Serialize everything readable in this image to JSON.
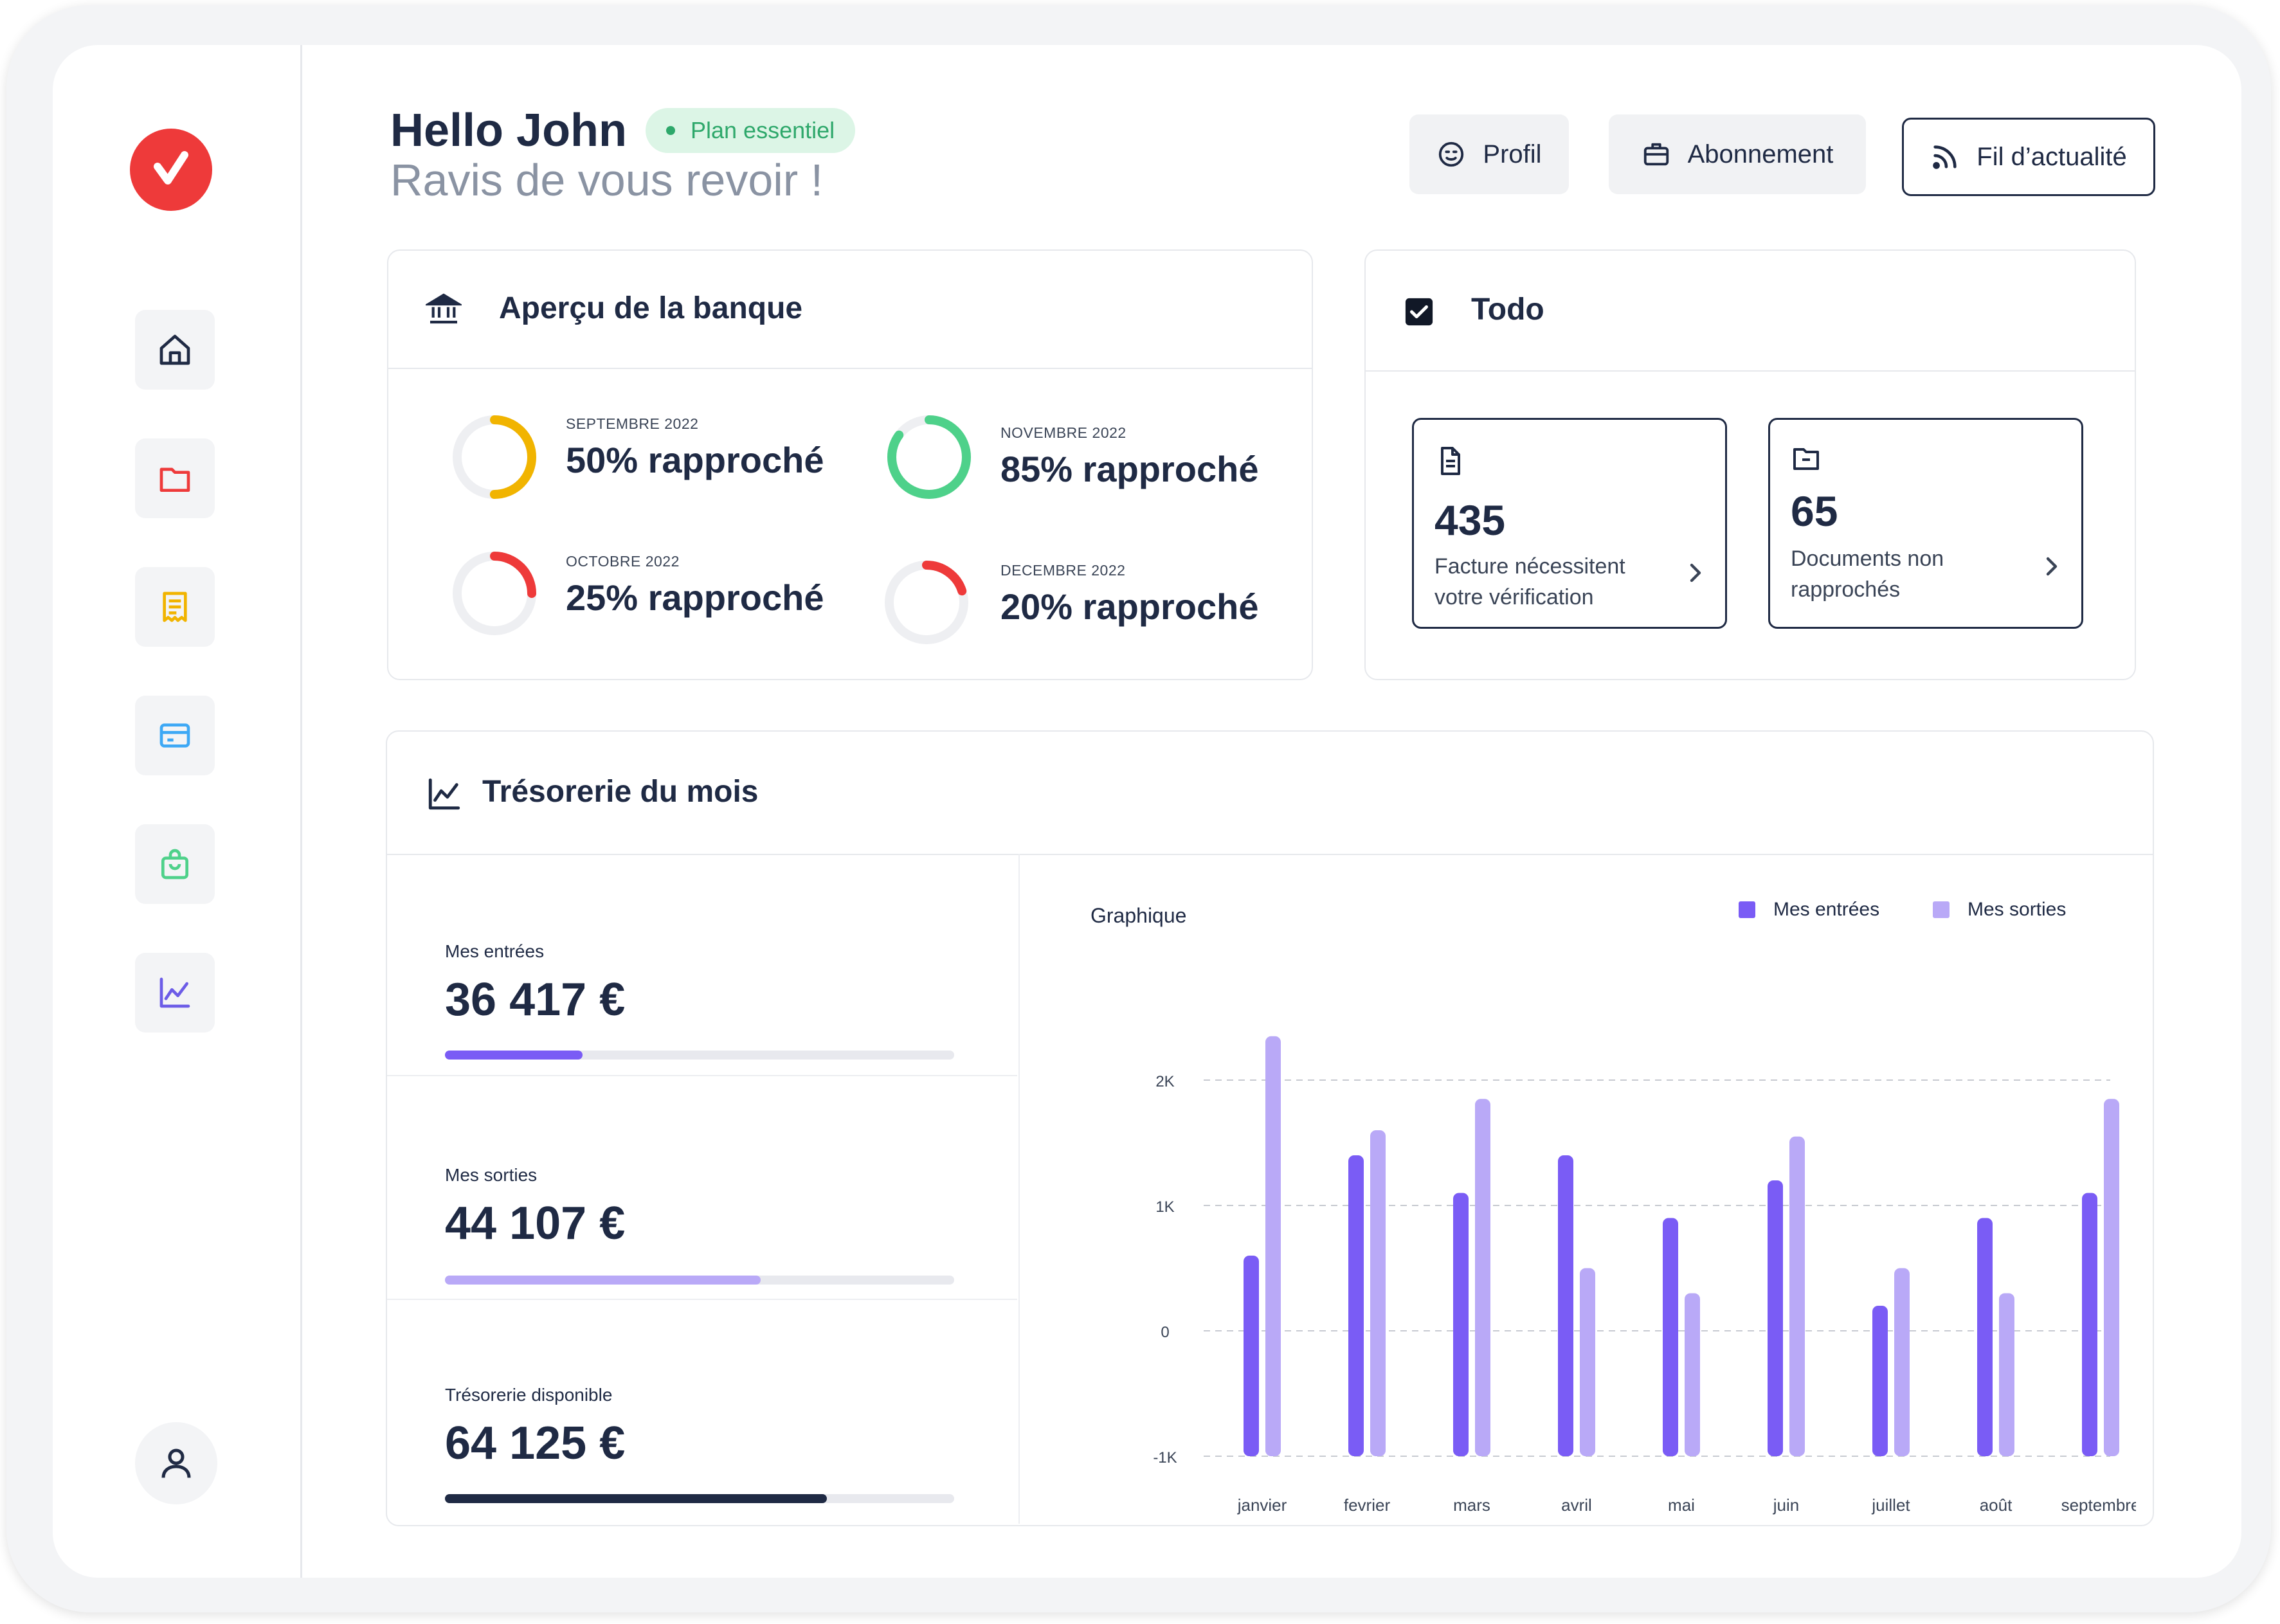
{
  "header": {
    "greeting": "Hello John",
    "plan_badge": "Plan essentiel",
    "subtitle": "Ravis de vous revoir !",
    "buttons": [
      {
        "label": "Profil",
        "icon": "smiley-icon"
      },
      {
        "label": "Abonnement",
        "icon": "briefcase-icon"
      },
      {
        "label": "Fil d’actualité",
        "icon": "rss-icon"
      }
    ]
  },
  "sidebar": {
    "items": [
      {
        "name": "home",
        "icon": "home-icon",
        "color": "#1f2a44"
      },
      {
        "name": "documents",
        "icon": "folder-icon",
        "color": "#ee3a3a"
      },
      {
        "name": "invoices",
        "icon": "receipt-icon",
        "color": "#f1b400"
      },
      {
        "name": "cards",
        "icon": "credit-card-icon",
        "color": "#3da8f5"
      },
      {
        "name": "shop",
        "icon": "shopping-bag-icon",
        "color": "#4ed18a"
      },
      {
        "name": "analytics",
        "icon": "chart-line-icon",
        "color": "#6c5ce7"
      }
    ]
  },
  "bank": {
    "title": "Aperçu de la banque",
    "items": [
      {
        "month": "SEPTEMBRE 2022",
        "label": "50% rapproché",
        "percent": 50,
        "color": "#f1b400"
      },
      {
        "month": "NOVEMBRE 2022",
        "label": "85% rapproché",
        "percent": 85,
        "color": "#4ed18a"
      },
      {
        "month": "OCTOBRE 2022",
        "label": "25% rapproché",
        "percent": 25,
        "color": "#ee3a3a"
      },
      {
        "month": "DECEMBRE 2022",
        "label": "20% rapproché",
        "percent": 20,
        "color": "#ee3a3a"
      }
    ]
  },
  "todo": {
    "title": "Todo",
    "items": [
      {
        "count": "435",
        "line1": "Facture nécessitent",
        "line2": "votre vérification"
      },
      {
        "count": "65",
        "line1": "Documents non",
        "line2": "rapprochés"
      }
    ]
  },
  "treasury": {
    "title": "Trésorerie du mois",
    "stats": [
      {
        "label": "Mes entrées",
        "value": "36 417 €",
        "fill": 0.27,
        "color": "#7a5cf5"
      },
      {
        "label": "Mes sorties",
        "value": "44 107 €",
        "fill": 0.62,
        "color": "#b9a9f7"
      },
      {
        "label": "Trésorerie disponible",
        "value": "64 125 €",
        "fill": 0.75,
        "color": "#1f2a44"
      }
    ]
  },
  "chart_data": {
    "type": "bar",
    "title": "Graphique",
    "categories": [
      "janvier",
      "fevrier",
      "mars",
      "avril",
      "mai",
      "juin",
      "juillet",
      "août",
      "septembre"
    ],
    "series": [
      {
        "name": "Mes entrées",
        "color": "#7a5cf5",
        "values": [
          600,
          1400,
          1100,
          1400,
          900,
          1200,
          200,
          900,
          1100
        ]
      },
      {
        "name": "Mes sorties",
        "color": "#b9a9f7",
        "values": [
          2350,
          1600,
          1850,
          500,
          300,
          1550,
          500,
          300,
          1850
        ]
      }
    ],
    "yticks": [
      {
        "value": 2000,
        "label": "2K"
      },
      {
        "value": 1000,
        "label": "1K"
      },
      {
        "value": 0,
        "label": "0"
      },
      {
        "value": -1000,
        "label": "-1K"
      }
    ],
    "ylim": [
      -1000,
      2000
    ],
    "grid": true,
    "legend": "top-right"
  }
}
